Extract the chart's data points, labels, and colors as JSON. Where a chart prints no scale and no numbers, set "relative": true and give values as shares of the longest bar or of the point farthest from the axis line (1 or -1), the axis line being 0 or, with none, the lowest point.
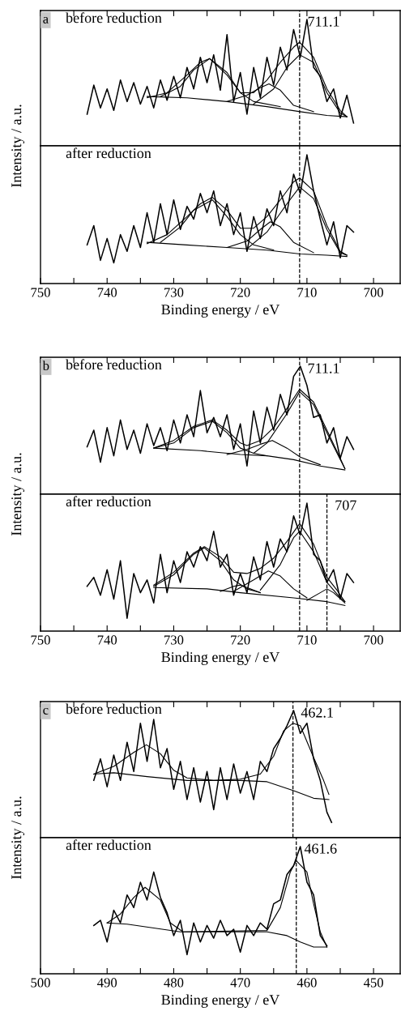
{
  "chart_data": [
    {
      "type": "line",
      "relative": true,
      "title": "before reduction",
      "annotations": [
        "a"
      ],
      "tick_labels": false,
      "xlim": [
        750,
        696
      ],
      "xticks": [
        750,
        {
          "value": 745,
          "label": null
        },
        740,
        {
          "value": 735,
          "label": null
        },
        730,
        {
          "value": 725,
          "label": null
        },
        720,
        {
          "value": 715,
          "label": null
        },
        710,
        {
          "value": 705,
          "label": null
        },
        700
      ],
      "ref_lines": [
        {
          "axis": "x",
          "value": 711.1,
          "label": "711.1",
          "color": "#000000",
          "line_style": "dashed"
        }
      ],
      "series": [
        {
          "color": "#000000",
          "x": [
            743,
            742,
            741,
            740,
            739,
            738,
            737,
            736,
            735,
            734,
            733,
            732,
            731,
            730,
            729,
            728,
            727,
            726,
            725,
            724,
            723,
            722,
            721,
            720,
            719,
            718,
            717,
            716,
            715,
            714,
            713,
            712,
            711,
            710,
            709,
            708,
            707,
            706,
            705,
            704,
            703
          ],
          "values": [
            0.25,
            0.48,
            0.3,
            0.45,
            0.28,
            0.52,
            0.35,
            0.5,
            0.33,
            0.47,
            0.3,
            0.52,
            0.36,
            0.55,
            0.38,
            0.62,
            0.45,
            0.7,
            0.5,
            0.72,
            0.44,
            0.88,
            0.35,
            0.58,
            0.25,
            0.62,
            0.38,
            0.7,
            0.48,
            0.78,
            0.6,
            0.92,
            0.7,
            1.0,
            0.62,
            0.55,
            0.35,
            0.45,
            0.22,
            0.4,
            0.18
          ]
        },
        {
          "color": "#000000",
          "x": [
            734,
            731,
            728,
            726,
            724.6,
            722,
            720,
            718,
            716,
            714,
            712,
            711.1,
            709,
            707,
            705,
            704
          ],
          "values": [
            0.38,
            0.42,
            0.56,
            0.66,
            0.69,
            0.58,
            0.42,
            0.42,
            0.52,
            0.66,
            0.78,
            0.82,
            0.7,
            0.45,
            0.28,
            0.23
          ]
        },
        {
          "color": "#000000",
          "x": [
            734,
            728,
            722,
            716,
            711,
            707,
            704
          ],
          "values": [
            0.39,
            0.38,
            0.35,
            0.31,
            0.27,
            0.24,
            0.23
          ]
        },
        {
          "color": "#000000",
          "x": [
            732,
            729,
            727,
            724.6,
            722,
            720,
            718,
            714
          ],
          "values": [
            0.39,
            0.47,
            0.6,
            0.69,
            0.56,
            0.42,
            0.35,
            0.31
          ]
        },
        {
          "color": "#000000",
          "x": [
            722,
            719,
            717,
            715.7,
            714,
            712,
            709
          ],
          "values": [
            0.35,
            0.4,
            0.46,
            0.49,
            0.44,
            0.32,
            0.27
          ]
        },
        {
          "color": "#000000",
          "x": [
            718,
            715,
            713,
            711.1,
            709,
            707,
            705,
            704
          ],
          "values": [
            0.33,
            0.45,
            0.62,
            0.72,
            0.66,
            0.42,
            0.26,
            0.23
          ]
        }
      ]
    },
    {
      "type": "line",
      "relative": true,
      "title": "after reduction",
      "tick_labels": "x",
      "xlabel": "Binding energy / eV",
      "ylabel": "Intensity / a.u.",
      "xlim": [
        750,
        696
      ],
      "xticks": [
        750,
        {
          "value": 745,
          "label": null
        },
        740,
        {
          "value": 735,
          "label": null
        },
        730,
        {
          "value": 725,
          "label": null
        },
        720,
        {
          "value": 715,
          "label": null
        },
        710,
        {
          "value": 705,
          "label": null
        },
        700
      ],
      "ref_lines": [
        {
          "axis": "x",
          "value": 711.1,
          "color": "#000000",
          "line_style": "dashed"
        }
      ],
      "series": [
        {
          "color": "#000000",
          "x": [
            743,
            742,
            741,
            740,
            739,
            738,
            737,
            736,
            735,
            734,
            733,
            732,
            731,
            730,
            729,
            728,
            727,
            726,
            725,
            724,
            723,
            722,
            721,
            720,
            719,
            718,
            717,
            716,
            715,
            714,
            713,
            712,
            711,
            710,
            709,
            708,
            707,
            706,
            705,
            704,
            703
          ],
          "values": [
            0.3,
            0.45,
            0.18,
            0.35,
            0.16,
            0.38,
            0.25,
            0.45,
            0.28,
            0.55,
            0.32,
            0.62,
            0.38,
            0.65,
            0.42,
            0.6,
            0.5,
            0.7,
            0.55,
            0.72,
            0.45,
            0.62,
            0.38,
            0.55,
            0.25,
            0.52,
            0.35,
            0.58,
            0.45,
            0.72,
            0.55,
            0.85,
            0.7,
            1.0,
            0.72,
            0.5,
            0.3,
            0.48,
            0.2,
            0.45,
            0.4
          ]
        },
        {
          "color": "#000000",
          "x": [
            734,
            731,
            728,
            726,
            724.2,
            722,
            720,
            718,
            716,
            714,
            712,
            711.1,
            709,
            707,
            705,
            704
          ],
          "values": [
            0.31,
            0.38,
            0.52,
            0.62,
            0.67,
            0.57,
            0.43,
            0.43,
            0.52,
            0.65,
            0.79,
            0.82,
            0.72,
            0.45,
            0.25,
            0.22
          ]
        },
        {
          "color": "#000000",
          "x": [
            734,
            728,
            722,
            716,
            711,
            707,
            704
          ],
          "values": [
            0.32,
            0.3,
            0.28,
            0.26,
            0.23,
            0.22,
            0.21
          ]
        },
        {
          "color": "#000000",
          "x": [
            732,
            729,
            727,
            724.2,
            722,
            720,
            718,
            715
          ],
          "values": [
            0.32,
            0.44,
            0.57,
            0.65,
            0.52,
            0.38,
            0.3,
            0.26
          ]
        },
        {
          "color": "#000000",
          "x": [
            722,
            719,
            717,
            715.5,
            714,
            712,
            709
          ],
          "values": [
            0.28,
            0.33,
            0.42,
            0.48,
            0.44,
            0.32,
            0.24
          ]
        },
        {
          "color": "#000000",
          "x": [
            719,
            716,
            713,
            711.1,
            709,
            707,
            705,
            704
          ],
          "values": [
            0.27,
            0.4,
            0.62,
            0.75,
            0.66,
            0.42,
            0.24,
            0.22
          ]
        }
      ]
    },
    {
      "type": "line",
      "relative": true,
      "title": "before reduction",
      "annotations": [
        "b"
      ],
      "tick_labels": false,
      "xlim": [
        750,
        696
      ],
      "xticks": [
        750,
        {
          "value": 745,
          "label": null
        },
        740,
        {
          "value": 735,
          "label": null
        },
        730,
        {
          "value": 725,
          "label": null
        },
        720,
        {
          "value": 715,
          "label": null
        },
        710,
        {
          "value": 705,
          "label": null
        },
        700
      ],
      "ref_lines": [
        {
          "axis": "x",
          "value": 711.1,
          "label": "711.1",
          "color": "#000000",
          "line_style": "dashed"
        }
      ],
      "series": [
        {
          "color": "#000000",
          "x": [
            743,
            742,
            741,
            740,
            739,
            738,
            737,
            736,
            735,
            734,
            733,
            732,
            731,
            730,
            729,
            728,
            727,
            726,
            725,
            724,
            723,
            722,
            721,
            720,
            719,
            718,
            717,
            716,
            715,
            714,
            713,
            712,
            711,
            710,
            709,
            708,
            707,
            706,
            705,
            704,
            703
          ],
          "values": [
            0.37,
            0.5,
            0.25,
            0.52,
            0.3,
            0.58,
            0.35,
            0.5,
            0.32,
            0.55,
            0.38,
            0.52,
            0.34,
            0.58,
            0.4,
            0.62,
            0.45,
            0.81,
            0.48,
            0.6,
            0.45,
            0.62,
            0.35,
            0.55,
            0.22,
            0.65,
            0.4,
            0.68,
            0.5,
            0.78,
            0.62,
            0.92,
            1.0,
            0.85,
            0.6,
            0.62,
            0.4,
            0.52,
            0.28,
            0.45,
            0.35
          ]
        },
        {
          "color": "#000000",
          "x": [
            733,
            730,
            727,
            724.2,
            722,
            720,
            719,
            717,
            715,
            713,
            711.1,
            709,
            707,
            705,
            704.3
          ],
          "values": [
            0.36,
            0.42,
            0.53,
            0.58,
            0.5,
            0.4,
            0.38,
            0.42,
            0.52,
            0.67,
            0.82,
            0.72,
            0.5,
            0.28,
            0.2
          ]
        },
        {
          "color": "#000000",
          "x": [
            733,
            726,
            720,
            716,
            712,
            708,
            704.3
          ],
          "values": [
            0.36,
            0.34,
            0.31,
            0.3,
            0.27,
            0.22,
            0.19
          ]
        },
        {
          "color": "#000000",
          "x": [
            733,
            730,
            727,
            724.2,
            722,
            720,
            718,
            716
          ],
          "values": [
            0.36,
            0.4,
            0.52,
            0.57,
            0.48,
            0.36,
            0.32,
            0.3
          ]
        },
        {
          "color": "#000000",
          "x": [
            722,
            719,
            717,
            715.2,
            713,
            711,
            708
          ],
          "values": [
            0.31,
            0.35,
            0.39,
            0.42,
            0.36,
            0.29,
            0.23
          ]
        },
        {
          "color": "#000000",
          "x": [
            718,
            716,
            713,
            711.1,
            709,
            707,
            705,
            704.3
          ],
          "values": [
            0.32,
            0.4,
            0.63,
            0.8,
            0.7,
            0.48,
            0.27,
            0.2
          ]
        }
      ]
    },
    {
      "type": "line",
      "relative": true,
      "title": "after reduction",
      "tick_labels": "x",
      "xlabel": "Binding energy / eV",
      "ylabel": "Intensity / a.u.",
      "xlim": [
        750,
        696
      ],
      "xticks": [
        750,
        {
          "value": 745,
          "label": null
        },
        740,
        {
          "value": 735,
          "label": null
        },
        730,
        {
          "value": 725,
          "label": null
        },
        720,
        {
          "value": 715,
          "label": null
        },
        710,
        {
          "value": 705,
          "label": null
        },
        700
      ],
      "ref_lines": [
        {
          "axis": "x",
          "value": 711.1,
          "color": "#000000",
          "line_style": "dashed"
        },
        {
          "axis": "x",
          "value": 707,
          "label": "707",
          "color": "#000000",
          "line_style": "dashed"
        }
      ],
      "series": [
        {
          "color": "#000000",
          "x": [
            743,
            742,
            741,
            740,
            739,
            738,
            737,
            736,
            735,
            734,
            733,
            732,
            731,
            730,
            729,
            728,
            727,
            726,
            725,
            724,
            723,
            722,
            721,
            720,
            719,
            718,
            717,
            716,
            715,
            714,
            713,
            712,
            711,
            710,
            709,
            708,
            707,
            706,
            705,
            704,
            703
          ],
          "values": [
            0.35,
            0.42,
            0.28,
            0.48,
            0.25,
            0.55,
            0.1,
            0.45,
            0.3,
            0.4,
            0.22,
            0.6,
            0.3,
            0.55,
            0.38,
            0.62,
            0.5,
            0.66,
            0.55,
            0.78,
            0.5,
            0.6,
            0.28,
            0.45,
            0.3,
            0.58,
            0.4,
            0.7,
            0.5,
            0.72,
            0.62,
            0.9,
            0.75,
            1.0,
            0.6,
            0.55,
            0.38,
            0.48,
            0.25,
            0.45,
            0.38
          ]
        },
        {
          "color": "#000000",
          "x": [
            733,
            730,
            727,
            725.4,
            723,
            721,
            719,
            717,
            715,
            713,
            711.1,
            709,
            707,
            705.5,
            704.3
          ],
          "values": [
            0.36,
            0.46,
            0.61,
            0.66,
            0.58,
            0.46,
            0.45,
            0.49,
            0.57,
            0.7,
            0.84,
            0.68,
            0.42,
            0.32,
            0.23
          ]
        },
        {
          "color": "#000000",
          "x": [
            733,
            725,
            720,
            712,
            707,
            704.3
          ],
          "values": [
            0.34,
            0.33,
            0.3,
            0.26,
            0.23,
            0.2
          ]
        },
        {
          "color": "#000000",
          "x": [
            733,
            730,
            727,
            725.4,
            723,
            721,
            719,
            717
          ],
          "values": [
            0.35,
            0.44,
            0.6,
            0.65,
            0.55,
            0.4,
            0.33,
            0.3
          ]
        },
        {
          "color": "#000000",
          "x": [
            723,
            721,
            720,
            719,
            717
          ],
          "values": [
            0.31,
            0.35,
            0.36,
            0.34,
            0.3
          ]
        },
        {
          "color": "#000000",
          "x": [
            721,
            718,
            715.8,
            714,
            712,
            710
          ],
          "values": [
            0.31,
            0.4,
            0.47,
            0.43,
            0.33,
            0.26
          ]
        },
        {
          "color": "#000000",
          "x": [
            717,
            714,
            712,
            711.1,
            709,
            707,
            705,
            704.3
          ],
          "values": [
            0.32,
            0.52,
            0.73,
            0.78,
            0.62,
            0.38,
            0.26,
            0.23
          ]
        },
        {
          "color": "#000000",
          "x": [
            710,
            708,
            707,
            706,
            704.3
          ],
          "values": [
            0.24,
            0.3,
            0.33,
            0.3,
            0.22
          ]
        }
      ]
    },
    {
      "type": "line",
      "relative": true,
      "title": "before reduction",
      "annotations": [
        "c"
      ],
      "tick_labels": false,
      "xlim": [
        500,
        446
      ],
      "xticks": [
        500,
        {
          "value": 495,
          "label": null
        },
        490,
        {
          "value": 485,
          "label": null
        },
        480,
        {
          "value": 475,
          "label": null
        },
        470,
        {
          "value": 465,
          "label": null
        },
        460,
        {
          "value": 455,
          "label": null
        },
        450
      ],
      "ref_lines": [
        {
          "axis": "x",
          "value": 462.1,
          "label": "462.1",
          "color": "#000000",
          "line_style": "dashed"
        }
      ],
      "series": [
        {
          "color": "#000000",
          "x": [
            492,
            491,
            490,
            489,
            488,
            487,
            486,
            485,
            484,
            483,
            482,
            481,
            480,
            479,
            478,
            477,
            476,
            475,
            474,
            473,
            472,
            471,
            470,
            469,
            468,
            467,
            466,
            465,
            464,
            463,
            462,
            461,
            460,
            459,
            458,
            457,
            456.3
          ],
          "values": [
            0.45,
            0.62,
            0.4,
            0.65,
            0.45,
            0.75,
            0.52,
            0.9,
            0.6,
            0.93,
            0.55,
            0.7,
            0.38,
            0.6,
            0.3,
            0.55,
            0.28,
            0.52,
            0.22,
            0.55,
            0.3,
            0.58,
            0.35,
            0.52,
            0.3,
            0.6,
            0.52,
            0.7,
            0.78,
            0.88,
            1.0,
            0.82,
            0.9,
            0.62,
            0.45,
            0.2,
            0.12
          ]
        },
        {
          "color": "#000000",
          "x": [
            492,
            489,
            486,
            484.1,
            482,
            480,
            478,
            474,
            470,
            467,
            465,
            463.5,
            462.1,
            461,
            459,
            457.5,
            456.7
          ],
          "values": [
            0.5,
            0.56,
            0.67,
            0.73,
            0.66,
            0.53,
            0.47,
            0.45,
            0.46,
            0.5,
            0.64,
            0.84,
            0.9,
            0.88,
            0.63,
            0.45,
            0.34
          ]
        },
        {
          "color": "#000000",
          "x": [
            492,
            489,
            484,
            478,
            470,
            466,
            462,
            459,
            456.7
          ],
          "values": [
            0.5,
            0.51,
            0.48,
            0.45,
            0.45,
            0.44,
            0.37,
            0.31,
            0.3
          ]
        }
      ]
    },
    {
      "type": "line",
      "relative": true,
      "title": "after reduction",
      "tick_labels": "x",
      "xlabel": "Binding energy / eV",
      "ylabel": "Intensity / a.u.",
      "xlim": [
        500,
        446
      ],
      "xticks": [
        500,
        {
          "value": 495,
          "label": null
        },
        490,
        {
          "value": 485,
          "label": null
        },
        480,
        {
          "value": 475,
          "label": null
        },
        470,
        {
          "value": 465,
          "label": null
        },
        460,
        {
          "value": 455,
          "label": null
        },
        450
      ],
      "ref_lines": [
        {
          "axis": "x",
          "value": 461.6,
          "label": "461.6",
          "color": "#000000",
          "line_style": "dashed"
        }
      ],
      "series": [
        {
          "color": "#000000",
          "x": [
            492,
            491,
            490,
            489,
            488,
            487,
            486,
            485,
            484,
            483,
            482,
            481,
            480,
            479,
            478,
            477,
            476,
            475,
            474,
            473,
            472,
            471,
            470,
            469,
            468,
            467,
            466,
            465,
            464,
            463,
            462,
            461,
            460,
            459,
            458,
            457
          ],
          "values": [
            0.38,
            0.42,
            0.25,
            0.5,
            0.4,
            0.62,
            0.52,
            0.72,
            0.58,
            0.8,
            0.6,
            0.48,
            0.3,
            0.42,
            0.15,
            0.4,
            0.25,
            0.38,
            0.28,
            0.42,
            0.3,
            0.35,
            0.17,
            0.38,
            0.3,
            0.4,
            0.35,
            0.55,
            0.58,
            0.78,
            0.85,
            1.0,
            0.72,
            0.62,
            0.3,
            0.22
          ]
        },
        {
          "color": "#000000",
          "x": [
            490,
            488,
            486,
            484.3,
            482,
            480.5,
            478.6,
            466,
            464,
            462.5,
            461.6,
            460,
            459,
            458,
            457
          ],
          "values": [
            0.4,
            0.47,
            0.6,
            0.68,
            0.58,
            0.4,
            0.33,
            0.34,
            0.52,
            0.8,
            0.89,
            0.8,
            0.55,
            0.33,
            0.21
          ]
        },
        {
          "color": "#000000",
          "x": [
            490,
            487,
            483,
            479,
            470,
            466,
            463,
            461,
            459,
            457
          ],
          "values": [
            0.4,
            0.39,
            0.36,
            0.33,
            0.33,
            0.33,
            0.3,
            0.25,
            0.21,
            0.21
          ]
        }
      ]
    }
  ]
}
